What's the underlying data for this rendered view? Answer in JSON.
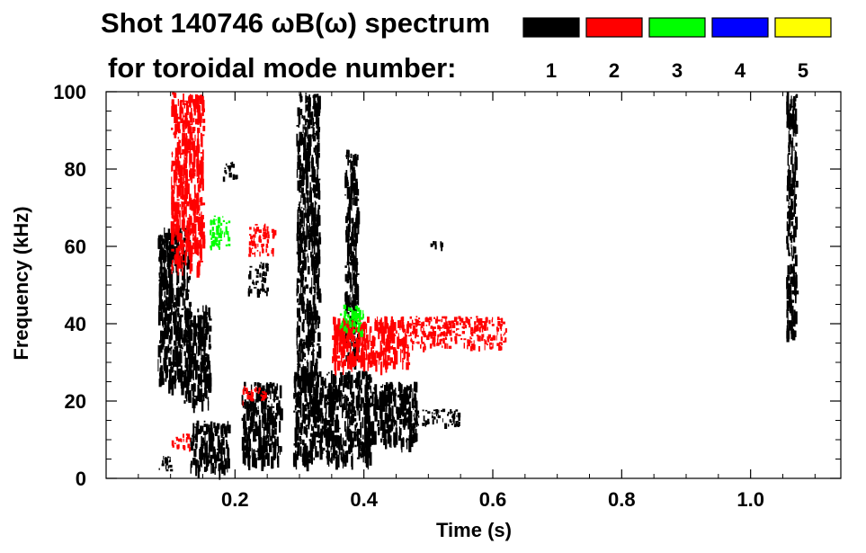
{
  "chart_data": {
    "type": "heatmap",
    "title_line1": "Shot 140746 ωB(ω) spectrum",
    "title_line2": "for toroidal mode number:",
    "xlabel": "Time (s)",
    "ylabel": "Frequency (kHz)",
    "xlim": [
      0.0,
      1.14
    ],
    "ylim": [
      0,
      100
    ],
    "x_ticks": [
      0.2,
      0.4,
      0.6,
      0.8,
      1.0
    ],
    "x_tick_labels": [
      "0.2",
      "0.4",
      "0.6",
      "0.8",
      "1.0"
    ],
    "y_ticks": [
      0,
      20,
      40,
      60,
      80,
      100
    ],
    "y_tick_labels": [
      "0",
      "20",
      "40",
      "60",
      "80",
      "100"
    ],
    "legend": [
      {
        "label": "1",
        "color": "#000000"
      },
      {
        "label": "2",
        "color": "#ff0000"
      },
      {
        "label": "3",
        "color": "#00ff00"
      },
      {
        "label": "4",
        "color": "#0000ff"
      },
      {
        "label": "5",
        "color": "#ffff00"
      }
    ],
    "regions": [
      {
        "mode": 1,
        "t": [
          0.08,
          0.13
        ],
        "f": [
          25,
          65
        ]
      },
      {
        "mode": 1,
        "t": [
          0.12,
          0.16
        ],
        "f": [
          20,
          45
        ]
      },
      {
        "mode": 1,
        "t": [
          0.08,
          0.1
        ],
        "f": [
          2,
          6
        ]
      },
      {
        "mode": 1,
        "t": [
          0.13,
          0.19
        ],
        "f": [
          3,
          15
        ]
      },
      {
        "mode": 1,
        "t": [
          0.18,
          0.2
        ],
        "f": [
          78,
          82
        ]
      },
      {
        "mode": 1,
        "t": [
          0.21,
          0.27
        ],
        "f": [
          5,
          25
        ]
      },
      {
        "mode": 1,
        "t": [
          0.22,
          0.25
        ],
        "f": [
          48,
          56
        ]
      },
      {
        "mode": 1,
        "t": [
          0.29,
          0.41
        ],
        "f": [
          5,
          28
        ]
      },
      {
        "mode": 1,
        "t": [
          0.4,
          0.48
        ],
        "f": [
          10,
          25
        ]
      },
      {
        "mode": 1,
        "t": [
          0.48,
          0.55
        ],
        "f": [
          14,
          18
        ]
      },
      {
        "mode": 1,
        "t": [
          0.295,
          0.33
        ],
        "f": [
          25,
          100
        ]
      },
      {
        "mode": 1,
        "t": [
          0.37,
          0.39
        ],
        "f": [
          30,
          85
        ]
      },
      {
        "mode": 1,
        "t": [
          0.5,
          0.52
        ],
        "f": [
          60,
          62
        ]
      },
      {
        "mode": 1,
        "t": [
          1.055,
          1.07
        ],
        "f": [
          38,
          100
        ]
      },
      {
        "mode": 2,
        "t": [
          0.1,
          0.15
        ],
        "f": [
          55,
          100
        ]
      },
      {
        "mode": 2,
        "t": [
          0.22,
          0.26
        ],
        "f": [
          58,
          66
        ]
      },
      {
        "mode": 2,
        "t": [
          0.35,
          0.47
        ],
        "f": [
          30,
          42
        ]
      },
      {
        "mode": 2,
        "t": [
          0.47,
          0.62
        ],
        "f": [
          34,
          42
        ]
      },
      {
        "mode": 2,
        "t": [
          0.21,
          0.25
        ],
        "f": [
          20,
          24
        ]
      },
      {
        "mode": 2,
        "t": [
          0.1,
          0.13
        ],
        "f": [
          8,
          12
        ]
      },
      {
        "mode": 3,
        "t": [
          0.16,
          0.19
        ],
        "f": [
          60,
          68
        ]
      },
      {
        "mode": 3,
        "t": [
          0.36,
          0.4
        ],
        "f": [
          38,
          45
        ]
      }
    ]
  }
}
